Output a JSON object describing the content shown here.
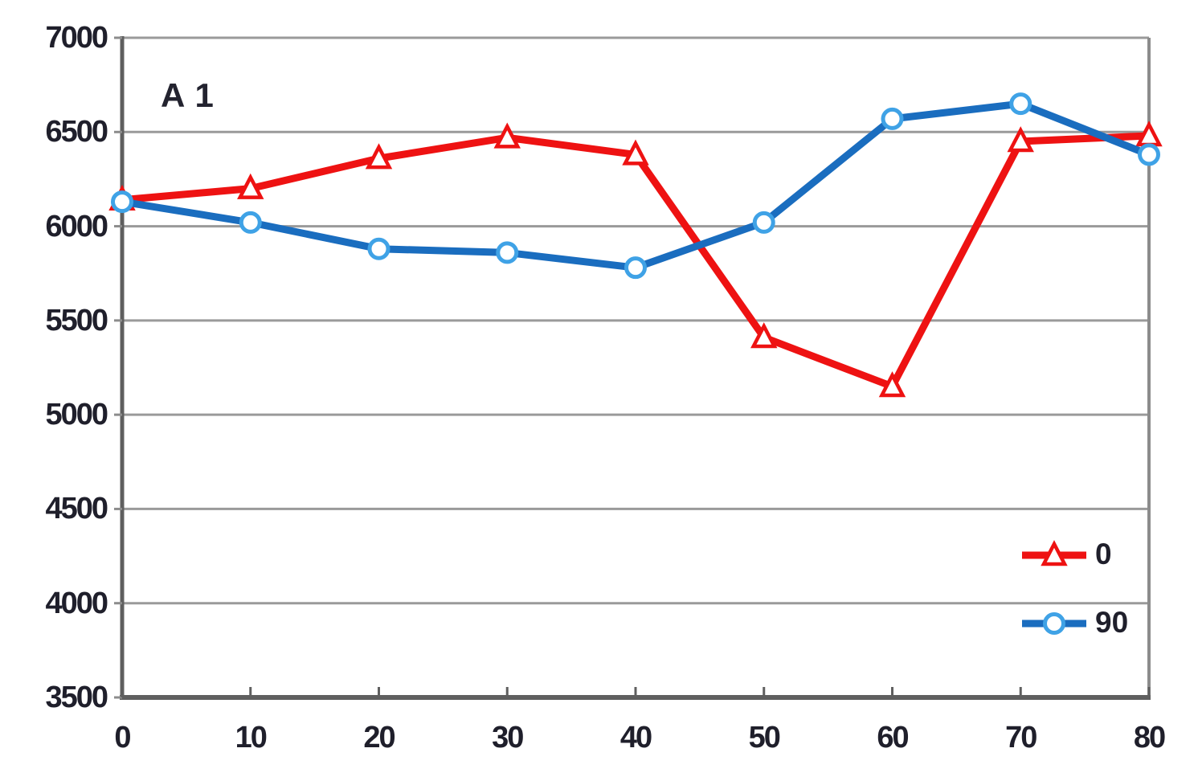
{
  "chart_data": {
    "type": "line",
    "annotation": "A 1",
    "x": [
      0,
      10,
      20,
      30,
      40,
      50,
      60,
      70,
      80
    ],
    "xlim": [
      0,
      80
    ],
    "ylim": [
      3500,
      7000
    ],
    "y_ticks": [
      3500,
      4000,
      4500,
      5000,
      5500,
      6000,
      6500,
      7000
    ],
    "x_ticks": [
      0,
      10,
      20,
      30,
      40,
      50,
      60,
      70,
      80
    ],
    "grid": "horizontal",
    "legend_position": "inside-right",
    "series": [
      {
        "name": "0",
        "color": "#ee1212",
        "marker": "triangle",
        "marker_stroke": "#ee1212",
        "marker_fill": "#ffffff",
        "values": [
          6140,
          6200,
          6360,
          6470,
          6380,
          5410,
          5150,
          6450,
          6480
        ]
      },
      {
        "name": "90",
        "color": "#1a6dbf",
        "marker": "circle",
        "marker_stroke": "#3fa2e6",
        "marker_fill": "#ffffff",
        "values": [
          6130,
          6020,
          5880,
          5860,
          5780,
          6020,
          6570,
          6650,
          6380
        ]
      }
    ],
    "colors": {
      "grid": "#9a9a9a",
      "axis": "#5f5f5f",
      "border": "#8c8c8c",
      "tick_label": "#1f1f2b",
      "background": "#ffffff"
    }
  }
}
